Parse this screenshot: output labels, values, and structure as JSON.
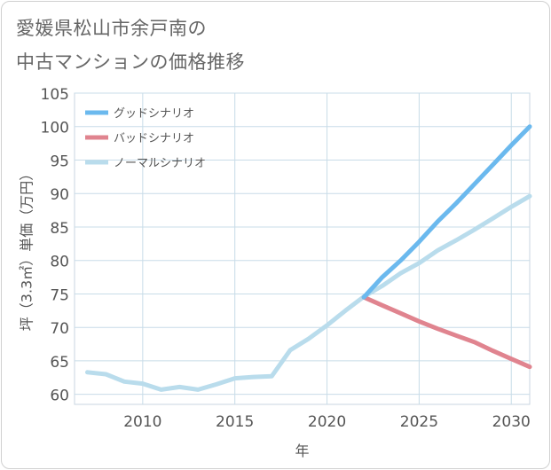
{
  "title_lines": [
    "愛媛県松山市余戸南の",
    "中古マンションの価格推移"
  ],
  "chart_data": {
    "type": "line",
    "title": "愛媛県松山市余戸南の中古マンションの価格推移",
    "xlabel": "年",
    "ylabel": "坪（3.3㎡）単価（万円）",
    "xlim": [
      2006.3,
      2031
    ],
    "ylim": [
      58.5,
      105
    ],
    "x_ticks": [
      2010,
      2015,
      2020,
      2025,
      2030
    ],
    "y_ticks": [
      60,
      65,
      70,
      75,
      80,
      85,
      90,
      95,
      100,
      105
    ],
    "grid": true,
    "legend_position": "top-left",
    "series": [
      {
        "name": "グッドシナリオ",
        "color": "#6bb9ee",
        "x": [
          2022,
          2023,
          2024,
          2025,
          2026,
          2027,
          2028,
          2029,
          2030,
          2031
        ],
        "y": [
          74.5,
          77.5,
          80,
          82.8,
          85.8,
          88.5,
          91.4,
          94.3,
          97.2,
          100
        ]
      },
      {
        "name": "バッドシナリオ",
        "color": "#e0848f",
        "x": [
          2022,
          2023,
          2024,
          2025,
          2026,
          2027,
          2028,
          2029,
          2030,
          2031
        ],
        "y": [
          74.5,
          73.3,
          72.1,
          70.9,
          69.8,
          68.8,
          67.8,
          66.5,
          65.3,
          64.1
        ]
      },
      {
        "name": "ノーマルシナリオ",
        "color": "#b9dcec",
        "x": [
          2007,
          2008,
          2009,
          2010,
          2011,
          2012,
          2013,
          2014,
          2015,
          2016,
          2017,
          2018,
          2019,
          2020,
          2021,
          2022,
          2023,
          2024,
          2025,
          2026,
          2027,
          2028,
          2029,
          2030,
          2031
        ],
        "y": [
          63.3,
          63,
          61.9,
          61.6,
          60.7,
          61.1,
          60.7,
          61.5,
          62.4,
          62.6,
          62.7,
          66.6,
          68.3,
          70.3,
          72.5,
          74.6,
          76.2,
          78.1,
          79.6,
          81.5,
          83,
          84.6,
          86.3,
          88,
          89.6
        ]
      }
    ]
  }
}
